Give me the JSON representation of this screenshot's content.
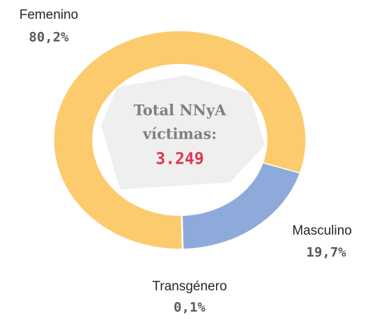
{
  "chart_data": {
    "type": "donut",
    "categories": [
      "Femenino",
      "Masculino",
      "Transgénero"
    ],
    "values": [
      80.2,
      19.7,
      0.1
    ],
    "value_labels": [
      "80,2%",
      "19,7%",
      "0,1%"
    ],
    "colors": [
      "#fbcb6e",
      "#8eaadb",
      "#70ad47"
    ],
    "center_text": [
      "Total NNyA",
      "víctimas:"
    ],
    "center_total": "3.249"
  }
}
